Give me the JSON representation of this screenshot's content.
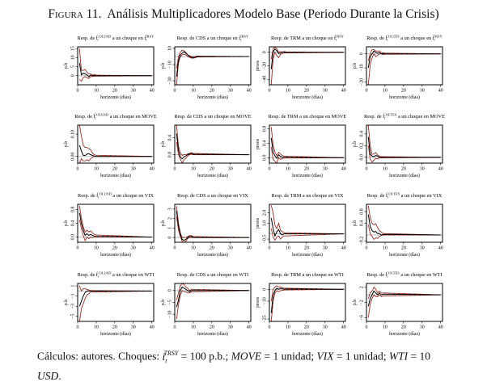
{
  "figure": {
    "label": "Figura 11.",
    "title": "Análisis Multiplicadores Modelo Base (Periodo Durante la Crisis)"
  },
  "caption": {
    "text1": "Cálculos: autores. Choques: ",
    "shock_var": "i",
    "shock_sub": "t",
    "shock_sup": "TRSY",
    "text2": " = 100 p.b.; ",
    "move": "MOVE",
    "text3": " = 1 unidad; ",
    "vix": "VIX",
    "text4": " = 1 unidad; ",
    "wti": "WTI",
    "text5": " = 10",
    "usd": "USD",
    "text6": "."
  },
  "colors": {
    "response": "#000000",
    "band_red": "#c0392b",
    "band_black": "#000000",
    "zero_line": "#bbbbbb"
  },
  "chart_data": {
    "type": "line",
    "title_prefix": "Resp. de",
    "title_mid": "a un choque en",
    "xlabel": "horizonte (días)",
    "xlim": [
      0,
      41
    ],
    "xticks": [
      0,
      10,
      20,
      30,
      40
    ],
    "panels": [
      {
        "response": {
          "base": "i",
          "sub": "t",
          "sup": "COLUSD"
        },
        "shock": {
          "base": "i",
          "sub": "t",
          "sup": "TRSY"
        },
        "ylabel": "p.b",
        "ylim": [
          -5,
          16
        ],
        "yticks": [
          0,
          5,
          10,
          15
        ],
        "ytick_labels": [
          "0",
          "5",
          "10",
          "15"
        ],
        "irf": [
          7,
          0.5,
          1.5,
          1,
          0.5,
          -0.5,
          0.3,
          0,
          0.2,
          0
        ],
        "upper": [
          15,
          3,
          3,
          3.5,
          2,
          1,
          1,
          0.5,
          0.8,
          0.3
        ],
        "lower": [
          -2,
          -3,
          -1,
          -0.5,
          -1,
          -1.5,
          -0.5,
          -0.5,
          -0.3,
          -0.2
        ]
      },
      {
        "response": {
          "base": "CDS"
        },
        "shock": {
          "base": "i",
          "sub": "t",
          "sup": "TRSY"
        },
        "ylabel": "p.b",
        "ylim": [
          -35,
          12
        ],
        "yticks": [
          -30,
          -10,
          10
        ],
        "ytick_labels": [
          "−30",
          "−10",
          "10"
        ],
        "irf": [
          -25,
          -5,
          2,
          4,
          6,
          4,
          2,
          0,
          -1,
          -1.5,
          -1,
          0
        ],
        "upper": [
          -15,
          0,
          5,
          8,
          7,
          5,
          2,
          1,
          0,
          0,
          0,
          0.5
        ],
        "lower": [
          -40,
          -8,
          0,
          2,
          3,
          2,
          0,
          -1,
          -2,
          -2,
          -1.5,
          -0.5
        ]
      },
      {
        "response": {
          "base": "TRM"
        },
        "shock": {
          "base": "i",
          "sub": "t",
          "sup": "TRSY"
        },
        "ylabel": "pesos",
        "ylim": [
          -48,
          8
        ],
        "yticks": [
          -40,
          -20,
          0
        ],
        "ytick_labels": [
          "−40",
          "−20",
          "0"
        ],
        "irf": [
          -25,
          0,
          5,
          2,
          -2,
          -1,
          0,
          0.5,
          0
        ],
        "upper": [
          -10,
          5,
          8,
          5,
          0,
          1,
          0.5,
          1,
          0.5
        ],
        "lower": [
          -50,
          -10,
          0,
          -5,
          -8,
          -3,
          -2,
          -1,
          -1
        ]
      },
      {
        "response": {
          "base": "i",
          "sub": "t",
          "sup": "COLTES"
        },
        "shock": {
          "base": "i",
          "sub": "t",
          "sup": "TRSY"
        },
        "ylabel": "p.b",
        "ylim": [
          -22,
          5
        ],
        "yticks": [
          -20,
          -10,
          0
        ],
        "ytick_labels": [
          "−20",
          "−10",
          "0"
        ],
        "irf": [
          -10,
          -2,
          0,
          2,
          1,
          0.5,
          1,
          0,
          0.3,
          0
        ],
        "upper": [
          -5,
          0,
          3,
          3,
          2,
          2,
          2,
          1,
          0.8,
          0.5
        ],
        "lower": [
          -22,
          -8,
          -3,
          0,
          -2,
          -1,
          0,
          0,
          -0.5,
          -0.3
        ]
      },
      {
        "response": {
          "base": "i",
          "sub": "t",
          "sup": "COLUSD"
        },
        "shock": {
          "base": "MOVE"
        },
        "ylabel": "p.b",
        "ylim": [
          -0.03,
          0.14
        ],
        "yticks": [
          0,
          0.1
        ],
        "ytick_labels": [
          "0.00",
          "0.10"
        ],
        "irf": [
          0.05,
          0.025,
          0.005,
          0.004,
          0.01,
          0.012,
          0.008,
          0.004,
          0.002,
          0
        ],
        "upper": [
          0.14,
          0.09,
          0.05,
          0.04,
          0.04,
          0.035,
          0.03,
          0.015,
          0.008,
          0.005
        ],
        "lower": [
          -0.03,
          -0.01,
          -0.02,
          -0.02,
          -0.015,
          -0.02,
          -0.01,
          -0.005,
          0,
          0
        ]
      },
      {
        "response": {
          "base": "CDS"
        },
        "shock": {
          "base": "MOVE"
        },
        "ylabel": "p.b",
        "ylim": [
          -0.2,
          0.7
        ],
        "yticks": [
          0,
          0.4
        ],
        "ytick_labels": [
          "0.0",
          "0.4"
        ],
        "irf": [
          0.5,
          0.1,
          -0.05,
          -0.1,
          -0.05,
          -0.03,
          0,
          0.02,
          0.03,
          0.01
        ],
        "upper": [
          0.7,
          0.2,
          0.05,
          -0.02,
          0,
          0,
          0.02,
          0.03,
          0.05,
          0.03
        ],
        "lower": [
          0.3,
          0,
          -0.1,
          -0.2,
          -0.12,
          -0.08,
          -0.03,
          0,
          0.01,
          0
        ]
      },
      {
        "response": {
          "base": "TRM"
        },
        "shock": {
          "base": "MOVE"
        },
        "ylabel": "pesos",
        "ylim": [
          -0.15,
          0.9
        ],
        "yticks": [
          0,
          0.4,
          0.8
        ],
        "ytick_labels": [
          "0.0",
          "0.4",
          "0.8"
        ],
        "irf": [
          0.55,
          0.15,
          0.05,
          -0.02,
          0.08,
          0.03,
          0.02,
          0.01
        ],
        "upper": [
          0.85,
          0.35,
          0.15,
          0.05,
          0.15,
          0.1,
          0.06,
          0.04
        ],
        "lower": [
          0.3,
          -0.05,
          -0.1,
          -0.15,
          0,
          -0.05,
          -0.02,
          -0.01
        ]
      },
      {
        "response": {
          "base": "i",
          "sub": "t",
          "sup": "COLTES"
        },
        "shock": {
          "base": "MOVE"
        },
        "ylabel": "p.b",
        "ylim": [
          -0.1,
          0.55
        ],
        "yticks": [
          0,
          0.2,
          0.4
        ],
        "ytick_labels": [
          "0.0",
          "0.2",
          "0.4"
        ],
        "irf": [
          0.35,
          0.05,
          0.02,
          0.01,
          0.03,
          0.02,
          0,
          0
        ],
        "upper": [
          0.55,
          0.2,
          0.05,
          0.06,
          0.08,
          0.04,
          0.02,
          0.01
        ],
        "lower": [
          0.2,
          -0.03,
          -0.08,
          -0.05,
          -0.02,
          -0.03,
          -0.01,
          -0.01
        ]
      },
      {
        "response": {
          "base": "i",
          "sub": "t",
          "sup": "COLUSD"
        },
        "shock": {
          "base": "VIX"
        },
        "ylabel": "p.b",
        "ylim": [
          -0.15,
          0.95
        ],
        "yticks": [
          0,
          0.4,
          0.8
        ],
        "ytick_labels": [
          "0.0",
          "0.4",
          "0.8"
        ],
        "irf": [
          0.7,
          0.4,
          0.2,
          0.05,
          0.1,
          0.05,
          0.08,
          0.05,
          0.03,
          0.02
        ],
        "upper": [
          0.9,
          0.55,
          0.3,
          0.15,
          0.2,
          0.15,
          0.18,
          0.12,
          0.08,
          0.06
        ],
        "lower": [
          0.5,
          0.25,
          0.05,
          -0.1,
          0,
          -0.05,
          0,
          -0.02,
          0,
          0
        ]
      },
      {
        "response": {
          "base": "CDS"
        },
        "shock": {
          "base": "VIX"
        },
        "ylabel": "p.b",
        "ylim": [
          -0.5,
          3.5
        ],
        "yticks": [
          0,
          1,
          2,
          3
        ],
        "ytick_labels": [
          "0",
          "1",
          "2",
          "3"
        ],
        "irf": [
          2.8,
          1.2,
          0.3,
          -0.2,
          -0.3,
          -0.2,
          0,
          0.1,
          0.1,
          0
        ],
        "upper": [
          3.3,
          1.5,
          0.5,
          0,
          0,
          0,
          0.1,
          0.2,
          0.2,
          0.1
        ],
        "lower": [
          2.2,
          0.8,
          0.1,
          -0.4,
          -0.5,
          -0.4,
          -0.1,
          0,
          0,
          0
        ]
      },
      {
        "response": {
          "base": "TRM"
        },
        "shock": {
          "base": "VIX"
        },
        "ylabel": "pesos",
        "ylim": [
          -0.8,
          2.8
        ],
        "yticks": [
          -0.5,
          1,
          2
        ],
        "ytick_labels": [
          "−0.5",
          "1.0",
          "2.0"
        ],
        "irf": [
          1.5,
          0.5,
          -0.2,
          0.2,
          0.4,
          0,
          -0.1,
          0
        ],
        "upper": [
          2.7,
          2,
          0.8,
          0.5,
          1,
          0.3,
          0.2,
          0.1
        ],
        "lower": [
          0.5,
          -0.3,
          -0.6,
          -0.3,
          -0.2,
          -0.5,
          -0.3,
          -0.2
        ]
      },
      {
        "response": {
          "base": "i",
          "sub": "t",
          "sup": "COLTES"
        },
        "shock": {
          "base": "VIX"
        },
        "ylabel": "p.b",
        "ylim": [
          -0.25,
          1.05
        ],
        "yticks": [
          -0.2,
          0.4,
          0.8
        ],
        "ytick_labels": [
          "−0.2",
          "0.4",
          "0.8"
        ],
        "irf": [
          0.7,
          0.3,
          0.15,
          0.1,
          0.12,
          0.05,
          0.05,
          0,
          0.02
        ],
        "upper": [
          1,
          0.6,
          0.4,
          0.35,
          0.38,
          0.25,
          0.15,
          0.1,
          0.05
        ],
        "lower": [
          0.35,
          0.05,
          -0.05,
          -0.15,
          -0.1,
          -0.12,
          -0.05,
          -0.02,
          0
        ]
      },
      {
        "response": {
          "base": "i",
          "sub": "t",
          "sup": "COLUSD"
        },
        "shock": {
          "base": "WTI"
        },
        "ylabel": "p.b",
        "ylim": [
          -6,
          1.5
        ],
        "yticks": [
          -5,
          -3,
          -1,
          1
        ],
        "ytick_labels": [
          "−5",
          "−3",
          "−1",
          "1"
        ],
        "irf": [
          -3,
          -2,
          -1,
          -0.3,
          0,
          0,
          0
        ],
        "upper": [
          1,
          0,
          0.5,
          0.5,
          0.3,
          0.2,
          0.1
        ],
        "lower": [
          -6,
          -3.5,
          -2.5,
          -1.5,
          -0.8,
          -0.5,
          -0.2
        ]
      },
      {
        "response": {
          "base": "CDS"
        },
        "shock": {
          "base": "WTI"
        },
        "ylabel": "p.b",
        "ylim": [
          -13,
          3
        ],
        "yticks": [
          -10,
          -5,
          0
        ],
        "ytick_labels": [
          "−10",
          "−5",
          "0"
        ],
        "irf": [
          -7,
          -4,
          0,
          1.5,
          1,
          0.5,
          0,
          -0.5,
          0
        ],
        "upper": [
          -4,
          -1,
          2,
          3,
          2.5,
          1.5,
          1,
          0,
          0.5
        ],
        "lower": [
          -12,
          -6,
          -2,
          0,
          -0.5,
          -0.5,
          -1,
          -1,
          -0.5
        ]
      },
      {
        "response": {
          "base": "TRM"
        },
        "shock": {
          "base": "WTI"
        },
        "ylabel": "pesos",
        "ylim": [
          -27,
          5
        ],
        "yticks": [
          -25,
          -10,
          0
        ],
        "ytick_labels": [
          "−25",
          "−10",
          "0"
        ],
        "irf": [
          -20,
          -5,
          -1,
          1,
          0,
          1,
          0.5,
          0,
          0.3
        ],
        "upper": [
          -10,
          0,
          2,
          3,
          2,
          2,
          1.5,
          1,
          1
        ],
        "lower": [
          -27,
          -10,
          -3,
          -1,
          -2,
          -1,
          -1,
          -0.5,
          -0.5
        ]
      },
      {
        "response": {
          "base": "i",
          "sub": "t",
          "sup": "COLTES"
        },
        "shock": {
          "base": "WTI"
        },
        "ylabel": "p.b",
        "ylim": [
          -7,
          3
        ],
        "yticks": [
          -6,
          -2,
          2
        ],
        "ytick_labels": [
          "−6",
          "−2",
          "2"
        ],
        "irf": [
          -3,
          -1,
          0,
          1,
          0.5,
          0,
          0.5,
          0,
          0.2
        ],
        "upper": [
          -1,
          0.5,
          1,
          2,
          1.5,
          0.5,
          1,
          0.5,
          0.5
        ],
        "lower": [
          -6,
          -2.5,
          -1,
          0,
          -0.5,
          -0.5,
          0,
          -0.5,
          -0.3
        ]
      }
    ]
  }
}
